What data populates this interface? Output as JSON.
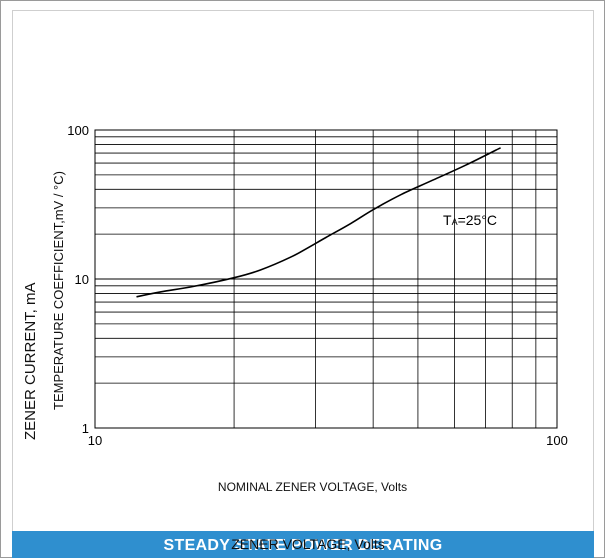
{
  "chart_data": {
    "type": "line",
    "xscale": "log",
    "yscale": "log",
    "xlim": [
      10,
      100
    ],
    "ylim": [
      1,
      100
    ],
    "x_tick_labels": [
      "10",
      "100"
    ],
    "y_tick_labels": [
      "1",
      "10",
      "100"
    ],
    "grid": true,
    "ylabel_outer": "ZENER CURRENT, mA",
    "ylabel_inner": "TEMPERATURE COEFFICIENT,mV / °C)",
    "xlabel": "NOMINAL ZENER VOLTAGE, Volts",
    "annotation": {
      "main": "T",
      "sub": "A",
      "rest": "=25°C"
    },
    "series": [
      {
        "x": [
          12.3,
          13.9,
          16.3,
          20.0,
          22.8,
          26.5,
          29.0,
          31.6,
          35.8,
          40.0,
          46.1,
          53.8,
          63.4,
          71.6,
          75.5
        ],
        "y": [
          7.6,
          8.2,
          8.9,
          10.2,
          11.5,
          14.0,
          16.3,
          19.0,
          23.6,
          29.2,
          37.0,
          46.0,
          58.0,
          70.0,
          76.0
        ]
      }
    ]
  },
  "banner": {
    "title": "STEADY STATE POWER DERATING",
    "overlay": "ZENER VOLTAGE, Volts"
  },
  "colors": {
    "banner_background": "#2f8fcf",
    "curve": "#000000",
    "grid": "#000000"
  }
}
